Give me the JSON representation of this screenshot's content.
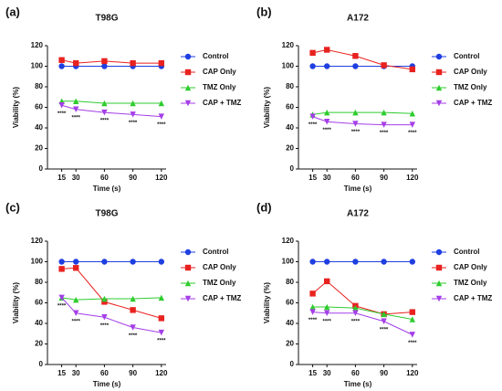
{
  "chart_data": [
    {
      "type": "line",
      "panel_label": "(a)",
      "title": "T98G",
      "xlabel": "Time (s)",
      "ylabel": "Viability (%)",
      "x": [
        15,
        30,
        60,
        90,
        120
      ],
      "xlim": [
        0,
        125
      ],
      "xticks": [
        15,
        30,
        60,
        90,
        120
      ],
      "ylim": [
        0,
        120
      ],
      "yticks": [
        0,
        20,
        40,
        60,
        80,
        100,
        120
      ],
      "series": [
        {
          "name": "Control",
          "color": "#1f3fe0",
          "marker": "circle",
          "values": [
            100,
            100,
            100,
            100,
            100
          ]
        },
        {
          "name": "CAP Only",
          "color": "#e8221f",
          "marker": "square",
          "values": [
            106,
            103,
            105,
            103,
            103
          ]
        },
        {
          "name": "TMZ Only",
          "color": "#2ecc2e",
          "marker": "triangle-up",
          "values": [
            66,
            66,
            64,
            64,
            64
          ]
        },
        {
          "name": "CAP + TMZ",
          "color": "#a43ee8",
          "marker": "triangle-down",
          "values": [
            62,
            58,
            55,
            53,
            51
          ]
        }
      ],
      "annotations": [
        "****",
        "****",
        "****",
        "****",
        "****"
      ]
    },
    {
      "type": "line",
      "panel_label": "(b)",
      "title": "A172",
      "xlabel": "Time (s)",
      "ylabel": "Viability (%)",
      "x": [
        15,
        30,
        60,
        90,
        120
      ],
      "xlim": [
        0,
        125
      ],
      "xticks": [
        15,
        30,
        60,
        90,
        120
      ],
      "ylim": [
        0,
        120
      ],
      "yticks": [
        0,
        20,
        40,
        60,
        80,
        100,
        120
      ],
      "series": [
        {
          "name": "Control",
          "color": "#1f3fe0",
          "marker": "circle",
          "values": [
            100,
            100,
            100,
            100,
            100
          ]
        },
        {
          "name": "CAP Only",
          "color": "#e8221f",
          "marker": "square",
          "values": [
            113,
            116,
            110,
            101,
            97
          ]
        },
        {
          "name": "TMZ Only",
          "color": "#2ecc2e",
          "marker": "triangle-up",
          "values": [
            53,
            55,
            55,
            55,
            54
          ]
        },
        {
          "name": "CAP + TMZ",
          "color": "#a43ee8",
          "marker": "triangle-down",
          "values": [
            51,
            46,
            44,
            43,
            43
          ]
        }
      ],
      "annotations": [
        "****",
        "****",
        "****",
        "****",
        "****"
      ]
    },
    {
      "type": "line",
      "panel_label": "(c)",
      "title": "T98G",
      "xlabel": "Time (s)",
      "ylabel": "Viability (%)",
      "x": [
        15,
        30,
        60,
        90,
        120
      ],
      "xlim": [
        0,
        125
      ],
      "xticks": [
        15,
        30,
        60,
        90,
        120
      ],
      "ylim": [
        0,
        120
      ],
      "yticks": [
        0,
        20,
        40,
        60,
        80,
        100,
        120
      ],
      "series": [
        {
          "name": "Control",
          "color": "#1f3fe0",
          "marker": "circle",
          "values": [
            100,
            100,
            100,
            100,
            100
          ]
        },
        {
          "name": "CAP Only",
          "color": "#e8221f",
          "marker": "square",
          "values": [
            93,
            94,
            61,
            53,
            45
          ]
        },
        {
          "name": "TMZ Only",
          "color": "#2ecc2e",
          "marker": "triangle-up",
          "values": [
            65,
            63,
            64,
            64,
            65
          ]
        },
        {
          "name": "CAP + TMZ",
          "color": "#a43ee8",
          "marker": "triangle-down",
          "values": [
            65,
            50,
            46,
            36,
            31
          ]
        }
      ],
      "annotations": [
        "****",
        "****",
        "****",
        "****",
        "****"
      ]
    },
    {
      "type": "line",
      "panel_label": "(d)",
      "title": "A172",
      "xlabel": "Time (s)",
      "ylabel": "Viability (%)",
      "x": [
        15,
        30,
        60,
        90,
        120
      ],
      "xlim": [
        0,
        125
      ],
      "xticks": [
        15,
        30,
        60,
        90,
        120
      ],
      "ylim": [
        0,
        120
      ],
      "yticks": [
        0,
        20,
        40,
        60,
        80,
        100,
        120
      ],
      "series": [
        {
          "name": "Control",
          "color": "#1f3fe0",
          "marker": "circle",
          "values": [
            100,
            100,
            100,
            100,
            100
          ]
        },
        {
          "name": "CAP Only",
          "color": "#e8221f",
          "marker": "square",
          "values": [
            69,
            81,
            57,
            49,
            51
          ]
        },
        {
          "name": "TMZ Only",
          "color": "#2ecc2e",
          "marker": "triangle-up",
          "values": [
            56,
            56,
            55,
            49,
            44
          ]
        },
        {
          "name": "CAP + TMZ",
          "color": "#a43ee8",
          "marker": "triangle-down",
          "values": [
            51,
            50,
            50,
            42,
            29
          ]
        }
      ],
      "annotations": [
        "****",
        "****",
        "****",
        "****",
        "****"
      ]
    }
  ]
}
